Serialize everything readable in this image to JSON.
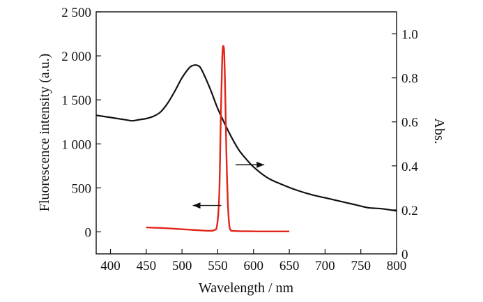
{
  "chart_data": {
    "type": "line",
    "xlabel": "Wavelength / nm",
    "ylabel_left": "Fluorescence intensity (a.u.)",
    "ylabel_right": "Abs.",
    "xlim": [
      380,
      800
    ],
    "ylim_left": [
      -250,
      2500
    ],
    "ylim_right": [
      0,
      1.1
    ],
    "x_ticks": [
      400,
      450,
      500,
      550,
      600,
      650,
      700,
      750,
      800
    ],
    "left_ticks": [
      0,
      500,
      1000,
      1500,
      2000,
      2500
    ],
    "left_tick_labels": [
      "0",
      "500",
      "1 000",
      "1 500",
      "2 000",
      "2 500"
    ],
    "right_ticks": [
      0,
      0.2,
      0.4,
      0.6,
      0.8,
      1.0
    ],
    "right_tick_labels": [
      "0",
      "0.2",
      "0.4",
      "0.6",
      "0.8",
      "1.0"
    ],
    "grid": false,
    "series": [
      {
        "axis": "right",
        "color": "#111111",
        "x": [
          380,
          400,
          420,
          430,
          440,
          450,
          460,
          470,
          480,
          490,
          500,
          510,
          515,
          520,
          525,
          530,
          540,
          550,
          560,
          570,
          580,
          590,
          600,
          620,
          640,
          660,
          680,
          700,
          720,
          740,
          760,
          780,
          800
        ],
        "y": [
          0.63,
          0.62,
          0.61,
          0.605,
          0.61,
          0.615,
          0.625,
          0.645,
          0.685,
          0.74,
          0.8,
          0.845,
          0.856,
          0.858,
          0.85,
          0.82,
          0.745,
          0.66,
          0.59,
          0.525,
          0.47,
          0.43,
          0.395,
          0.345,
          0.315,
          0.29,
          0.27,
          0.255,
          0.24,
          0.225,
          0.21,
          0.205,
          0.195
        ]
      },
      {
        "axis": "left",
        "color": "#e0261b",
        "x": [
          450,
          470,
          490,
          510,
          530,
          540,
          545,
          549,
          552,
          554,
          556,
          557,
          558,
          559,
          560,
          561,
          562,
          564,
          566,
          568,
          570,
          580,
          600,
          620,
          650
        ],
        "y": [
          50,
          45,
          35,
          25,
          15,
          12,
          20,
          70,
          400,
          1200,
          1900,
          2080,
          2110,
          2040,
          1750,
          1350,
          900,
          350,
          80,
          20,
          12,
          8,
          6,
          5,
          5
        ]
      }
    ],
    "annotations": [
      {
        "type": "arrow",
        "direction": "left",
        "x_from": 555,
        "x_to": 515,
        "y": 300,
        "axis": "left"
      },
      {
        "type": "arrow",
        "direction": "right",
        "x_from": 575,
        "x_to": 615,
        "y": 0.405,
        "axis": "right"
      }
    ]
  }
}
